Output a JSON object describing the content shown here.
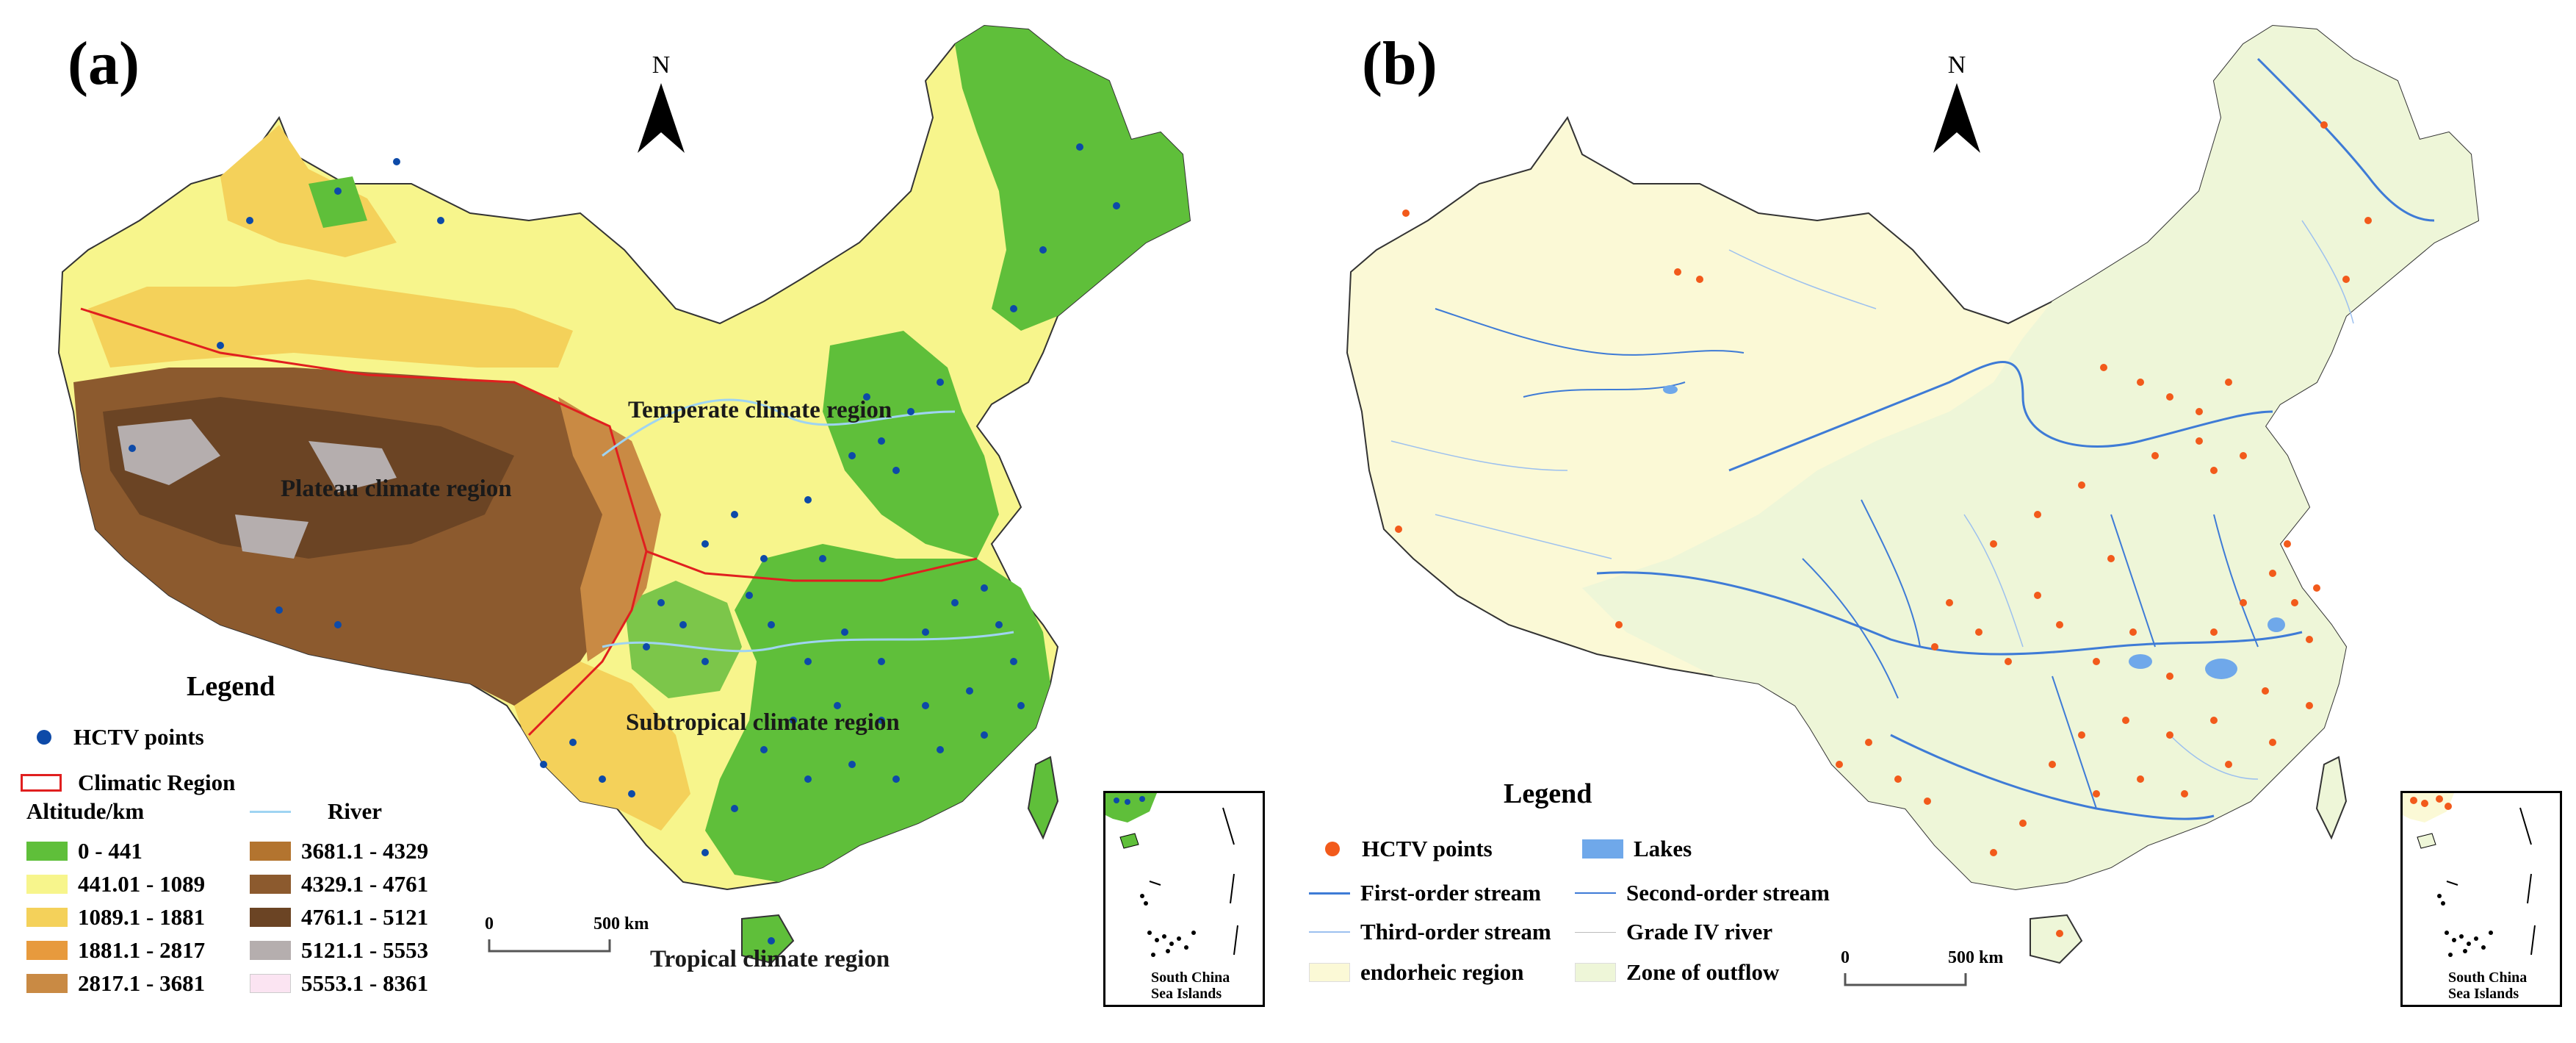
{
  "panel_a": {
    "label": "(a)",
    "north": "N",
    "regions": {
      "temperate": "Temperate climate region",
      "plateau": "Plateau climate region",
      "subtropical": "Subtropical climate region",
      "tropical": "Tropical climate region"
    },
    "legend": {
      "title": "Legend",
      "points": "HCTV points",
      "climatic_region": "Climatic Region",
      "altitude_title": "Altitude/km",
      "river": "River",
      "classes": [
        {
          "label": "0 - 441",
          "color": "#5fbf3a"
        },
        {
          "label": "441.01 - 1089",
          "color": "#f7f58c"
        },
        {
          "label": "1089.1 - 1881",
          "color": "#f4d15a"
        },
        {
          "label": "1881.1 - 2817",
          "color": "#e79a3d"
        },
        {
          "label": "2817.1 - 3681",
          "color": "#c98a44"
        },
        {
          "label": "3681.1 - 4329",
          "color": "#b3742f"
        },
        {
          "label": "4329.1 - 4761",
          "color": "#8c5a2e"
        },
        {
          "label": "4761.1 - 5121",
          "color": "#6b4424"
        },
        {
          "label": "5121.1 - 5553",
          "color": "#b5aeae"
        },
        {
          "label": "5553.1 - 8361",
          "color": "#fbe4f2"
        }
      ]
    },
    "scale": {
      "zero": "0",
      "distance": "500 km"
    },
    "inset": {
      "line1": "South China",
      "line2": "Sea Islands"
    },
    "colors": {
      "point": "#0d4aa8",
      "boundary": "#e01f1f",
      "river": "#9fd4f2"
    }
  },
  "panel_b": {
    "label": "(b)",
    "north": "N",
    "legend": {
      "title": "Legend",
      "points": "HCTV points",
      "lakes": "Lakes",
      "first_order": "First-order stream",
      "second_order": "Second-order stream",
      "third_order": "Third-order stream",
      "grade_iv": "Grade IV river",
      "endorheic": "endorheic region",
      "outflow": "Zone of outflow"
    },
    "scale": {
      "zero": "0",
      "distance": "500 km"
    },
    "inset": {
      "line1": "South China",
      "line2": "Sea Islands"
    },
    "colors": {
      "point": "#f25a1b",
      "lakes": "#6fa8ea",
      "stream": "#3e7bd6",
      "endorheic": "#fbf9d6",
      "outflow": "#eef6d8"
    }
  }
}
